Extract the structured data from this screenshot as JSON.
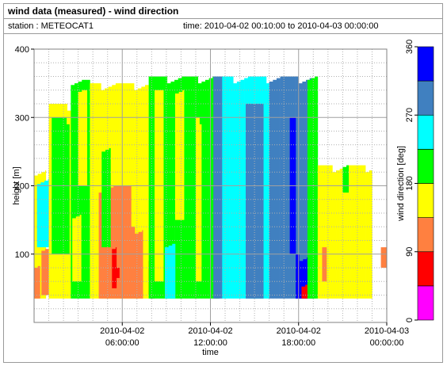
{
  "header": {
    "title": "wind data (measured) - wind direction",
    "station": "station : METEOCAT1",
    "time_range": "time: 2010-04-02 00:10:00 to 2010-04-03 00:00:00"
  },
  "chart_data": {
    "type": "heatmap",
    "title": "wind data (measured) - wind direction",
    "xlabel": "time",
    "ylabel": "height [m]",
    "colorbar_label": "wind direction [deg]",
    "x_unit": "hours since 2010-04-02 00:00",
    "xlim": [
      0,
      24
    ],
    "ylim": [
      0,
      400
    ],
    "x_ticks": [
      {
        "value": 6,
        "line1": "2010-04-02",
        "line2": "06:00:00"
      },
      {
        "value": 12,
        "line1": "2010-04-02",
        "line2": "12:00:00"
      },
      {
        "value": 18,
        "line1": "2010-04-02",
        "line2": "18:00:00"
      },
      {
        "value": 24,
        "line1": "2010-04-03",
        "line2": "00:00:00"
      }
    ],
    "y_ticks": [
      100,
      200,
      300,
      400
    ],
    "grid": true,
    "colorbar_ticks": [
      0,
      90,
      180,
      270,
      360
    ],
    "color_levels": [
      {
        "from": 0,
        "to": 45,
        "color": "#ff00ff"
      },
      {
        "from": 45,
        "to": 90,
        "color": "#ff0000"
      },
      {
        "from": 90,
        "to": 135,
        "color": "#ff8040"
      },
      {
        "from": 135,
        "to": 180,
        "color": "#ffff00"
      },
      {
        "from": 180,
        "to": 225,
        "color": "#00ff00"
      },
      {
        "from": 225,
        "to": 270,
        "color": "#00ffff"
      },
      {
        "from": 270,
        "to": 315,
        "color": "#4080c0"
      },
      {
        "from": 315,
        "to": 360,
        "color": "#0000ff"
      }
    ],
    "blocks": [
      {
        "t0": 0.0,
        "t1": 0.8,
        "h0": 35,
        "h1": 225,
        "dir": 157
      },
      {
        "t0": 0.2,
        "t1": 1.2,
        "h0": 110,
        "h1": 210,
        "dir": 247
      },
      {
        "t0": 0.0,
        "t1": 0.4,
        "h0": 35,
        "h1": 90,
        "dir": 112
      },
      {
        "t0": 0.5,
        "t1": 1.0,
        "h0": 40,
        "h1": 110,
        "dir": 112
      },
      {
        "t0": 1.0,
        "t1": 2.5,
        "h0": 35,
        "h1": 320,
        "dir": 157
      },
      {
        "t0": 1.2,
        "t1": 2.4,
        "h0": 100,
        "h1": 300,
        "dir": 202
      },
      {
        "t0": 2.5,
        "t1": 3.8,
        "h0": 35,
        "h1": 355,
        "dir": 202
      },
      {
        "t0": 2.6,
        "t1": 3.2,
        "h0": 60,
        "h1": 160,
        "dir": 157
      },
      {
        "t0": 3.0,
        "t1": 3.6,
        "h0": 200,
        "h1": 340,
        "dir": 157
      },
      {
        "t0": 3.8,
        "t1": 7.8,
        "h0": 35,
        "h1": 350,
        "dir": 157
      },
      {
        "t0": 4.4,
        "t1": 6.6,
        "h0": 35,
        "h1": 200,
        "dir": 112
      },
      {
        "t0": 6.6,
        "t1": 7.4,
        "h0": 35,
        "h1": 140,
        "dir": 112
      },
      {
        "t0": 4.6,
        "t1": 5.2,
        "h0": 110,
        "h1": 260,
        "dir": 202
      },
      {
        "t0": 5.3,
        "t1": 5.6,
        "h0": 50,
        "h1": 110,
        "dir": 67
      },
      {
        "t0": 5.6,
        "t1": 5.8,
        "h0": 65,
        "h1": 80,
        "dir": 67
      },
      {
        "t0": 7.8,
        "t1": 7.9,
        "h0": 40,
        "h1": 90,
        "dir": 67
      },
      {
        "t0": 7.9,
        "t1": 8.2,
        "h0": 35,
        "h1": 50,
        "dir": 22
      },
      {
        "t0": 7.8,
        "t1": 10.4,
        "h0": 35,
        "h1": 360,
        "dir": 202
      },
      {
        "t0": 8.2,
        "t1": 8.8,
        "h0": 60,
        "h1": 340,
        "dir": 157
      },
      {
        "t0": 8.9,
        "t1": 9.6,
        "h0": 35,
        "h1": 120,
        "dir": 247
      },
      {
        "t0": 9.6,
        "t1": 10.2,
        "h0": 150,
        "h1": 340,
        "dir": 157
      },
      {
        "t0": 10.4,
        "t1": 11.4,
        "h0": 35,
        "h1": 360,
        "dir": 202
      },
      {
        "t0": 11.0,
        "t1": 11.4,
        "h0": 60,
        "h1": 300,
        "dir": 157
      },
      {
        "t0": 11.4,
        "t1": 12.6,
        "h0": 35,
        "h1": 360,
        "dir": 202
      },
      {
        "t0": 12.2,
        "t1": 12.8,
        "h0": 35,
        "h1": 360,
        "dir": 292
      },
      {
        "t0": 12.8,
        "t1": 16.0,
        "h0": 35,
        "h1": 360,
        "dir": 247
      },
      {
        "t0": 14.4,
        "t1": 15.6,
        "h0": 35,
        "h1": 320,
        "dir": 292
      },
      {
        "t0": 16.0,
        "t1": 19.0,
        "h0": 35,
        "h1": 360,
        "dir": 292
      },
      {
        "t0": 17.4,
        "t1": 17.8,
        "h0": 100,
        "h1": 300,
        "dir": 337
      },
      {
        "t0": 17.8,
        "t1": 18.6,
        "h0": 35,
        "h1": 100,
        "dir": 337
      },
      {
        "t0": 18.2,
        "t1": 18.6,
        "h0": 35,
        "h1": 60,
        "dir": 67
      },
      {
        "t0": 18.6,
        "t1": 19.3,
        "h0": 35,
        "h1": 360,
        "dir": 202
      },
      {
        "t0": 19.3,
        "t1": 23.0,
        "h0": 35,
        "h1": 230,
        "dir": 157
      },
      {
        "t0": 19.6,
        "t1": 19.9,
        "h0": 60,
        "h1": 110,
        "dir": 112
      },
      {
        "t0": 21.0,
        "t1": 21.4,
        "h0": 190,
        "h1": 230,
        "dir": 202
      },
      {
        "t0": 23.6,
        "t1": 24.0,
        "h0": 80,
        "h1": 110,
        "dir": 112
      }
    ]
  }
}
